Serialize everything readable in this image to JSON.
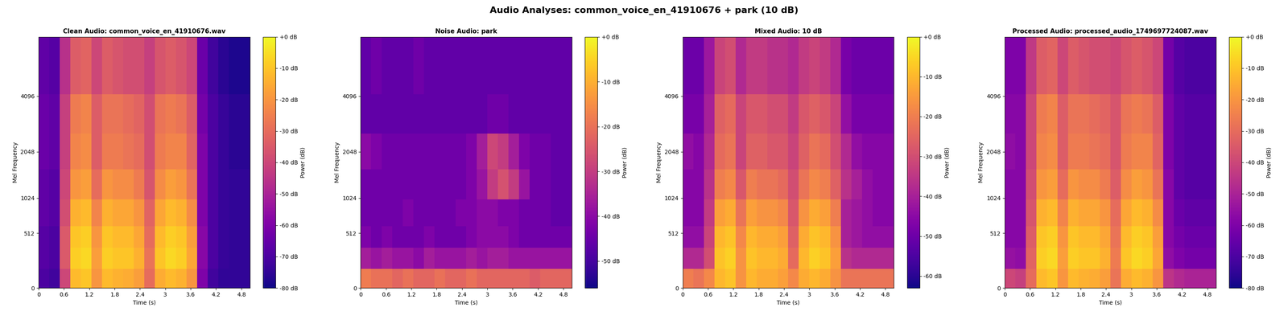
{
  "title": "Audio Analyses: common_voice_en_41910676 + park (10 dB)",
  "chart_data": [
    {
      "type": "heatmap",
      "title": "Clean Audio: common_voice_en_41910676.wav",
      "x_label": "Time (s)",
      "y_label": "Mel Frequency",
      "xlim": [
        0,
        5
      ],
      "xticks": [
        0,
        0.6,
        1.2,
        1.8,
        2.4,
        3,
        3.6,
        4.2,
        4.8
      ],
      "ylim": [
        0,
        8000
      ],
      "yticks": [
        0,
        512,
        1024,
        2048,
        4096
      ],
      "time_edges": [
        0,
        0.25,
        0.5,
        0.75,
        1,
        1.25,
        1.5,
        1.75,
        2,
        2.25,
        2.5,
        2.75,
        3,
        3.25,
        3.5,
        3.75,
        4,
        4.25,
        4.5,
        4.75,
        5
      ],
      "freq_edges": [
        0,
        150,
        350,
        600,
        1000,
        1600,
        2600,
        4200,
        8000
      ],
      "cells": [
        [
          -70,
          -72,
          -40,
          -12,
          -10,
          -20,
          -12,
          -14,
          -15,
          -18,
          -30,
          -15,
          -12,
          -14,
          -20,
          -60,
          -72,
          -75,
          -75,
          -75
        ],
        [
          -68,
          -70,
          -35,
          -8,
          -6,
          -18,
          -8,
          -10,
          -10,
          -14,
          -28,
          -10,
          -6,
          -8,
          -16,
          -58,
          -70,
          -74,
          -75,
          -75
        ],
        [
          -68,
          -70,
          -35,
          -10,
          -8,
          -20,
          -10,
          -12,
          -12,
          -16,
          -30,
          -12,
          -8,
          -10,
          -18,
          -58,
          -70,
          -74,
          -75,
          -75
        ],
        [
          -66,
          -68,
          -38,
          -14,
          -12,
          -24,
          -14,
          -16,
          -16,
          -20,
          -32,
          -16,
          -12,
          -14,
          -22,
          -60,
          -70,
          -74,
          -75,
          -75
        ],
        [
          -66,
          -68,
          -40,
          -20,
          -18,
          -30,
          -20,
          -22,
          -22,
          -26,
          -36,
          -22,
          -18,
          -20,
          -28,
          -60,
          -70,
          -74,
          -75,
          -75
        ],
        [
          -64,
          -66,
          -42,
          -24,
          -22,
          -34,
          -26,
          -26,
          -28,
          -30,
          -38,
          -26,
          -24,
          -24,
          -32,
          -60,
          -70,
          -74,
          -76,
          -76
        ],
        [
          -64,
          -66,
          -42,
          -26,
          -24,
          -34,
          -28,
          -28,
          -30,
          -32,
          -38,
          -28,
          -26,
          -28,
          -34,
          -62,
          -70,
          -74,
          -76,
          -76
        ],
        [
          -66,
          -68,
          -46,
          -34,
          -32,
          -40,
          -34,
          -36,
          -38,
          -38,
          -42,
          -36,
          -34,
          -36,
          -40,
          -64,
          -72,
          -76,
          -78,
          -78
        ]
      ],
      "colorbar": {
        "label": "Power (dB)",
        "range": [
          -80,
          0
        ],
        "ticks": [
          {
            "value": -80,
            "label": "-80 dB"
          },
          {
            "value": -70,
            "label": "-70 dB"
          },
          {
            "value": -60,
            "label": "-60 dB"
          },
          {
            "value": -50,
            "label": "-50 dB"
          },
          {
            "value": -40,
            "label": "-40 dB"
          },
          {
            "value": -30,
            "label": "-30 dB"
          },
          {
            "value": -20,
            "label": "-20 dB"
          },
          {
            "value": -10,
            "label": "-10 dB"
          },
          {
            "value": 0,
            "label": "+0 dB"
          }
        ]
      }
    },
    {
      "type": "heatmap",
      "title": "Noise Audio: park",
      "x_label": "Time (s)",
      "y_label": "Mel Frequency",
      "xlim": [
        0,
        5
      ],
      "xticks": [
        0,
        0.6,
        1.2,
        1.8,
        2.4,
        3,
        3.6,
        4.2,
        4.8
      ],
      "ylim": [
        0,
        8000
      ],
      "yticks": [
        0,
        512,
        1024,
        2048,
        4096
      ],
      "time_edges": [
        0,
        0.25,
        0.5,
        0.75,
        1,
        1.25,
        1.5,
        1.75,
        2,
        2.25,
        2.5,
        2.75,
        3,
        3.25,
        3.5,
        3.75,
        4,
        4.25,
        4.5,
        4.75,
        5
      ],
      "freq_edges": [
        0,
        150,
        350,
        600,
        1000,
        1600,
        2600,
        4200,
        8000
      ],
      "cells": [
        [
          -18,
          -20,
          -20,
          -22,
          -20,
          -22,
          -22,
          -20,
          -22,
          -22,
          -20,
          -22,
          -22,
          -22,
          -22,
          -22,
          -24,
          -22,
          -22,
          -22
        ],
        [
          -36,
          -38,
          -36,
          -38,
          -38,
          -40,
          -36,
          -38,
          -38,
          -38,
          -36,
          -38,
          -36,
          -36,
          -38,
          -38,
          -38,
          -38,
          -38,
          -38
        ],
        [
          -42,
          -44,
          -42,
          -44,
          -44,
          -44,
          -42,
          -44,
          -44,
          -44,
          -42,
          -40,
          -40,
          -40,
          -42,
          -44,
          -44,
          -44,
          -44,
          -44
        ],
        [
          -44,
          -44,
          -44,
          -44,
          -42,
          -44,
          -44,
          -44,
          -44,
          -42,
          -42,
          -40,
          -40,
          -42,
          -42,
          -44,
          -44,
          -44,
          -46,
          -46
        ],
        [
          -44,
          -44,
          -44,
          -44,
          -44,
          -44,
          -44,
          -44,
          -44,
          -44,
          -42,
          -38,
          -30,
          -26,
          -30,
          -38,
          -44,
          -44,
          -46,
          -46
        ],
        [
          -40,
          -42,
          -44,
          -44,
          -44,
          -44,
          -44,
          -44,
          -44,
          -44,
          -42,
          -36,
          -28,
          -30,
          -36,
          -42,
          -44,
          -44,
          -46,
          -46
        ],
        [
          -46,
          -46,
          -46,
          -46,
          -46,
          -46,
          -46,
          -46,
          -46,
          -46,
          -46,
          -46,
          -44,
          -44,
          -46,
          -46,
          -46,
          -46,
          -46,
          -46
        ],
        [
          -46,
          -44,
          -46,
          -46,
          -46,
          -44,
          -46,
          -46,
          -46,
          -46,
          -46,
          -46,
          -46,
          -46,
          -46,
          -46,
          -46,
          -46,
          -46,
          -46
        ]
      ],
      "colorbar": {
        "label": "Power (dB)",
        "range": [
          -56,
          0
        ],
        "ticks": [
          {
            "value": -50,
            "label": "-50 dB"
          },
          {
            "value": -40,
            "label": "-40 dB"
          },
          {
            "value": -30,
            "label": "-30 dB"
          },
          {
            "value": -20,
            "label": "-20 dB"
          },
          {
            "value": -10,
            "label": "-10 dB"
          },
          {
            "value": 0,
            "label": "+0 dB"
          }
        ]
      }
    },
    {
      "type": "heatmap",
      "title": "Mixed Audio: 10 dB",
      "x_label": "Time (s)",
      "y_label": "Mel Frequency",
      "xlim": [
        0,
        5
      ],
      "xticks": [
        0,
        0.6,
        1.2,
        1.8,
        2.4,
        3,
        3.6,
        4.2,
        4.8
      ],
      "ylim": [
        0,
        8000
      ],
      "yticks": [
        0,
        512,
        1024,
        2048,
        4096
      ],
      "time_edges": [
        0,
        0.25,
        0.5,
        0.75,
        1,
        1.25,
        1.5,
        1.75,
        2,
        2.25,
        2.5,
        2.75,
        3,
        3.25,
        3.5,
        3.75,
        4,
        4.25,
        4.5,
        4.75,
        5
      ],
      "freq_edges": [
        0,
        150,
        350,
        600,
        1000,
        1600,
        2600,
        4200,
        8000
      ],
      "cells": [
        [
          -20,
          -22,
          -18,
          -10,
          -8,
          -16,
          -10,
          -12,
          -12,
          -14,
          -18,
          -12,
          -10,
          -12,
          -16,
          -22,
          -22,
          -22,
          -22,
          -22
        ],
        [
          -38,
          -38,
          -30,
          -8,
          -6,
          -16,
          -8,
          -10,
          -10,
          -12,
          -24,
          -10,
          -6,
          -8,
          -14,
          -36,
          -38,
          -38,
          -38,
          -38
        ],
        [
          -44,
          -44,
          -32,
          -10,
          -8,
          -18,
          -10,
          -12,
          -12,
          -14,
          -26,
          -12,
          -8,
          -10,
          -16,
          -40,
          -42,
          -44,
          -44,
          -44
        ],
        [
          -46,
          -46,
          -34,
          -14,
          -12,
          -22,
          -14,
          -16,
          -16,
          -18,
          -28,
          -16,
          -12,
          -14,
          -20,
          -40,
          -42,
          -44,
          -46,
          -46
        ],
        [
          -46,
          -46,
          -36,
          -20,
          -18,
          -28,
          -20,
          -22,
          -22,
          -24,
          -30,
          -22,
          -18,
          -20,
          -26,
          -36,
          -40,
          -44,
          -46,
          -46
        ],
        [
          -44,
          -46,
          -38,
          -24,
          -22,
          -32,
          -26,
          -26,
          -28,
          -28,
          -32,
          -26,
          -22,
          -24,
          -30,
          -38,
          -44,
          -46,
          -46,
          -46
        ],
        [
          -48,
          -48,
          -40,
          -26,
          -24,
          -32,
          -28,
          -28,
          -30,
          -30,
          -34,
          -28,
          -26,
          -28,
          -32,
          -44,
          -48,
          -48,
          -48,
          -48
        ],
        [
          -50,
          -50,
          -42,
          -32,
          -30,
          -38,
          -34,
          -34,
          -36,
          -36,
          -38,
          -34,
          -32,
          -34,
          -38,
          -48,
          -50,
          -50,
          -50,
          -50
        ]
      ],
      "colorbar": {
        "label": "Power (dB)",
        "range": [
          -63,
          0
        ],
        "ticks": [
          {
            "value": -60,
            "label": "-60 dB"
          },
          {
            "value": -50,
            "label": "-50 dB"
          },
          {
            "value": -40,
            "label": "-40 dB"
          },
          {
            "value": -30,
            "label": "-30 dB"
          },
          {
            "value": -20,
            "label": "-20 dB"
          },
          {
            "value": -10,
            "label": "-10 dB"
          },
          {
            "value": 0,
            "label": "+0 dB"
          }
        ]
      }
    },
    {
      "type": "heatmap",
      "title": "Processed Audio: processed_audio_1749697724087.wav",
      "x_label": "Time (s)",
      "y_label": "Mel Frequency",
      "xlim": [
        0,
        5
      ],
      "xticks": [
        0,
        0.6,
        1.2,
        1.8,
        2.4,
        3,
        3.6,
        4.2,
        4.8
      ],
      "ylim": [
        0,
        8000
      ],
      "yticks": [
        0,
        512,
        1024,
        2048,
        4096
      ],
      "time_edges": [
        0,
        0.25,
        0.5,
        0.75,
        1,
        1.25,
        1.5,
        1.75,
        2,
        2.25,
        2.5,
        2.75,
        3,
        3.25,
        3.5,
        3.75,
        4,
        4.25,
        4.5,
        4.75,
        5
      ],
      "freq_edges": [
        0,
        150,
        350,
        600,
        1000,
        1600,
        2600,
        4200,
        8000
      ],
      "cells": [
        [
          -40,
          -42,
          -30,
          -12,
          -10,
          -20,
          -12,
          -14,
          -15,
          -18,
          -28,
          -15,
          -12,
          -14,
          -20,
          -45,
          -48,
          -50,
          -50,
          -50
        ],
        [
          -55,
          -56,
          -32,
          -8,
          -6,
          -18,
          -8,
          -10,
          -10,
          -14,
          -26,
          -10,
          -6,
          -8,
          -16,
          -56,
          -60,
          -62,
          -62,
          -62
        ],
        [
          -58,
          -58,
          -34,
          -10,
          -8,
          -20,
          -10,
          -12,
          -12,
          -16,
          -28,
          -12,
          -8,
          -10,
          -18,
          -58,
          -62,
          -64,
          -64,
          -64
        ],
        [
          -58,
          -58,
          -36,
          -14,
          -12,
          -24,
          -14,
          -16,
          -16,
          -20,
          -30,
          -16,
          -12,
          -14,
          -22,
          -58,
          -64,
          -66,
          -66,
          -66
        ],
        [
          -58,
          -58,
          -38,
          -20,
          -18,
          -30,
          -20,
          -22,
          -22,
          -26,
          -34,
          -22,
          -18,
          -20,
          -28,
          -58,
          -66,
          -68,
          -68,
          -68
        ],
        [
          -56,
          -58,
          -40,
          -24,
          -22,
          -34,
          -26,
          -26,
          -28,
          -30,
          -36,
          -26,
          -24,
          -24,
          -32,
          -60,
          -66,
          -68,
          -68,
          -68
        ],
        [
          -58,
          -58,
          -40,
          -26,
          -24,
          -34,
          -28,
          -28,
          -30,
          -32,
          -36,
          -28,
          -26,
          -28,
          -34,
          -60,
          -66,
          -68,
          -68,
          -68
        ],
        [
          -60,
          -60,
          -44,
          -34,
          -32,
          -40,
          -34,
          -36,
          -38,
          -38,
          -40,
          -36,
          -34,
          -36,
          -40,
          -62,
          -68,
          -70,
          -70,
          -70
        ]
      ],
      "colorbar": {
        "label": "Power (dB)",
        "range": [
          -80,
          0
        ],
        "ticks": [
          {
            "value": -80,
            "label": "-80 dB"
          },
          {
            "value": -70,
            "label": "-70 dB"
          },
          {
            "value": -60,
            "label": "-60 dB"
          },
          {
            "value": -50,
            "label": "-50 dB"
          },
          {
            "value": -40,
            "label": "-40 dB"
          },
          {
            "value": -30,
            "label": "-30 dB"
          },
          {
            "value": -20,
            "label": "-20 dB"
          },
          {
            "value": -10,
            "label": "-10 dB"
          },
          {
            "value": 0,
            "label": "+0 dB"
          }
        ]
      }
    }
  ]
}
